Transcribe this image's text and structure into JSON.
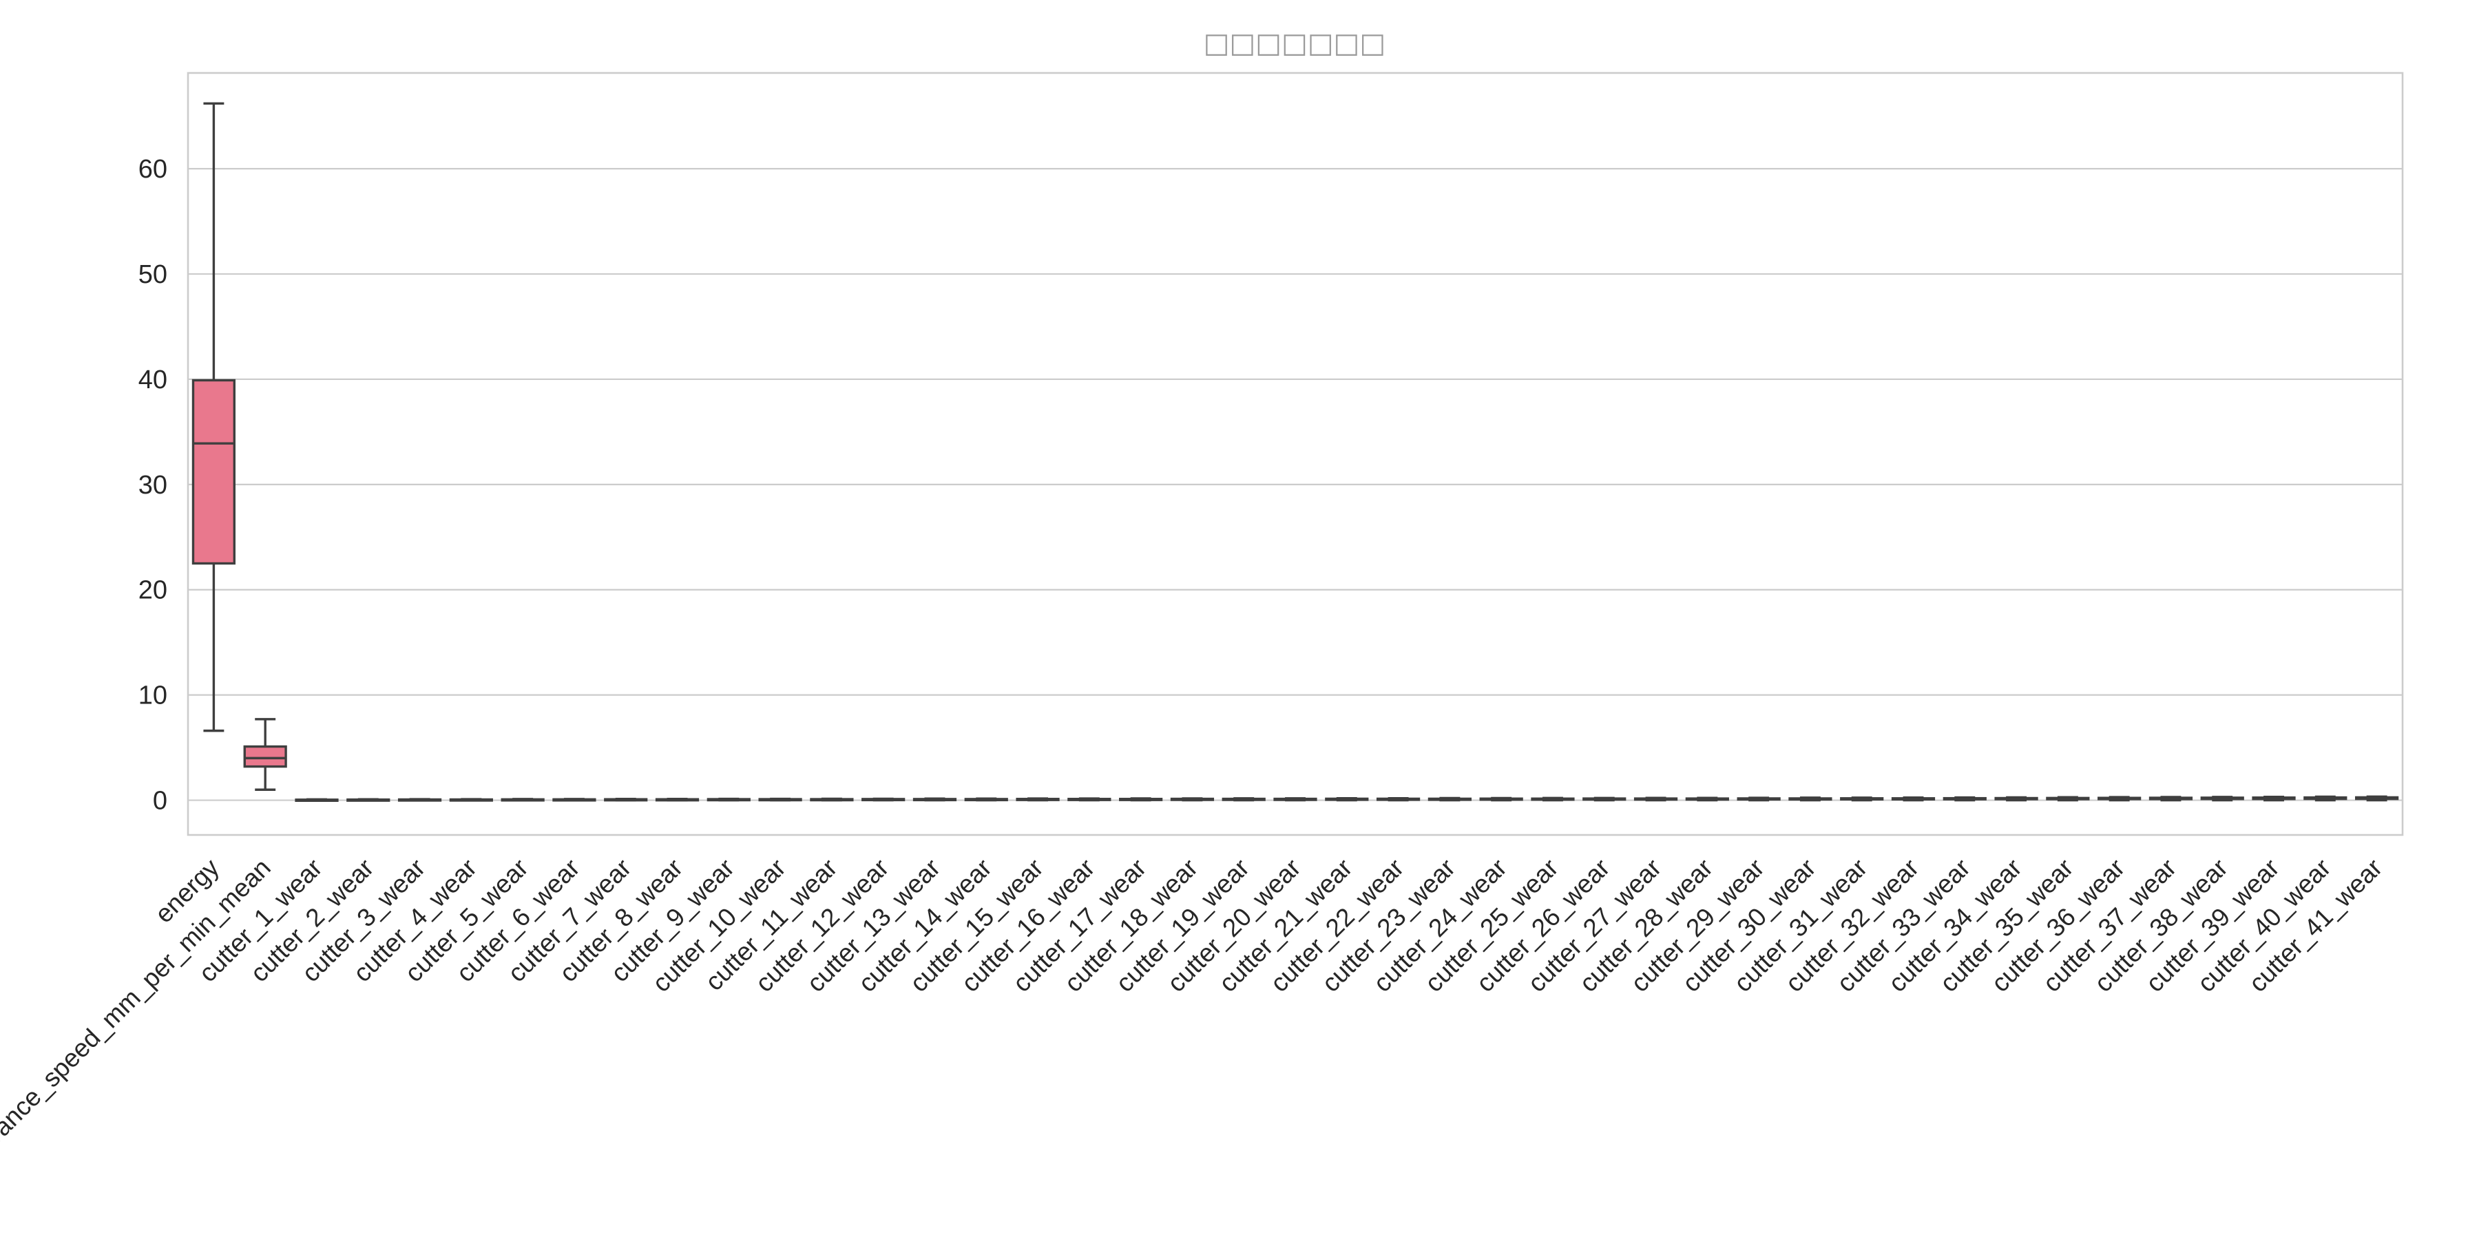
{
  "chart_data": {
    "type": "box",
    "title": "□□□□□□□",
    "xlabel": "",
    "ylabel": "",
    "ylim": [
      -3.3,
      69.1
    ],
    "yticks": [
      0,
      10,
      20,
      30,
      40,
      50,
      60
    ],
    "grid": true,
    "colors": {
      "box_fill": "#e9788d",
      "line": "#3f3f3f",
      "grid": "#cccccc",
      "title": "#9a9a9a"
    },
    "categories": [
      "energy",
      "advance_speed_mm_per_min_mean",
      "cutter_1_wear",
      "cutter_2_wear",
      "cutter_3_wear",
      "cutter_4_wear",
      "cutter_5_wear",
      "cutter_6_wear",
      "cutter_7_wear",
      "cutter_8_wear",
      "cutter_9_wear",
      "cutter_10_wear",
      "cutter_11_wear",
      "cutter_12_wear",
      "cutter_13_wear",
      "cutter_14_wear",
      "cutter_15_wear",
      "cutter_16_wear",
      "cutter_17_wear",
      "cutter_18_wear",
      "cutter_19_wear",
      "cutter_20_wear",
      "cutter_21_wear",
      "cutter_22_wear",
      "cutter_23_wear",
      "cutter_24_wear",
      "cutter_25_wear",
      "cutter_26_wear",
      "cutter_27_wear",
      "cutter_28_wear",
      "cutter_29_wear",
      "cutter_30_wear",
      "cutter_31_wear",
      "cutter_32_wear",
      "cutter_33_wear",
      "cutter_34_wear",
      "cutter_35_wear",
      "cutter_36_wear",
      "cutter_37_wear",
      "cutter_38_wear",
      "cutter_39_wear",
      "cutter_40_wear",
      "cutter_41_wear"
    ],
    "boxes": [
      {
        "min": 6.6,
        "q1": 22.5,
        "median": 33.9,
        "q3": 39.9,
        "max": 66.2
      },
      {
        "min": 1.0,
        "q1": 3.2,
        "median": 4.0,
        "q3": 5.1,
        "max": 7.7
      },
      {
        "min": 0.0,
        "q1": 0.02,
        "median": 0.03,
        "q3": 0.05,
        "max": 0.08
      },
      {
        "min": 0.0,
        "q1": 0.02,
        "median": 0.04,
        "q3": 0.06,
        "max": 0.09
      },
      {
        "min": 0.0,
        "q1": 0.03,
        "median": 0.05,
        "q3": 0.07,
        "max": 0.1
      },
      {
        "min": 0.0,
        "q1": 0.03,
        "median": 0.05,
        "q3": 0.07,
        "max": 0.1
      },
      {
        "min": 0.0,
        "q1": 0.03,
        "median": 0.05,
        "q3": 0.08,
        "max": 0.11
      },
      {
        "min": 0.0,
        "q1": 0.03,
        "median": 0.06,
        "q3": 0.08,
        "max": 0.11
      },
      {
        "min": 0.0,
        "q1": 0.04,
        "median": 0.06,
        "q3": 0.09,
        "max": 0.12
      },
      {
        "min": 0.0,
        "q1": 0.04,
        "median": 0.06,
        "q3": 0.09,
        "max": 0.12
      },
      {
        "min": 0.0,
        "q1": 0.04,
        "median": 0.07,
        "q3": 0.1,
        "max": 0.13
      },
      {
        "min": 0.0,
        "q1": 0.04,
        "median": 0.07,
        "q3": 0.1,
        "max": 0.13
      },
      {
        "min": 0.0,
        "q1": 0.05,
        "median": 0.07,
        "q3": 0.1,
        "max": 0.14
      },
      {
        "min": 0.0,
        "q1": 0.05,
        "median": 0.08,
        "q3": 0.11,
        "max": 0.14
      },
      {
        "min": 0.0,
        "q1": 0.05,
        "median": 0.08,
        "q3": 0.11,
        "max": 0.15
      },
      {
        "min": 0.0,
        "q1": 0.05,
        "median": 0.08,
        "q3": 0.11,
        "max": 0.15
      },
      {
        "min": 0.0,
        "q1": 0.05,
        "median": 0.08,
        "q3": 0.12,
        "max": 0.16
      },
      {
        "min": 0.0,
        "q1": 0.06,
        "median": 0.09,
        "q3": 0.12,
        "max": 0.16
      },
      {
        "min": 0.0,
        "q1": 0.06,
        "median": 0.09,
        "q3": 0.12,
        "max": 0.17
      },
      {
        "min": 0.0,
        "q1": 0.06,
        "median": 0.09,
        "q3": 0.13,
        "max": 0.17
      },
      {
        "min": 0.0,
        "q1": 0.06,
        "median": 0.1,
        "q3": 0.13,
        "max": 0.18
      },
      {
        "min": 0.0,
        "q1": 0.06,
        "median": 0.1,
        "q3": 0.13,
        "max": 0.18
      },
      {
        "min": 0.0,
        "q1": 0.07,
        "median": 0.1,
        "q3": 0.14,
        "max": 0.19
      },
      {
        "min": 0.0,
        "q1": 0.07,
        "median": 0.1,
        "q3": 0.14,
        "max": 0.19
      },
      {
        "min": 0.0,
        "q1": 0.07,
        "median": 0.11,
        "q3": 0.14,
        "max": 0.2
      },
      {
        "min": 0.0,
        "q1": 0.07,
        "median": 0.11,
        "q3": 0.15,
        "max": 0.2
      },
      {
        "min": 0.0,
        "q1": 0.07,
        "median": 0.11,
        "q3": 0.15,
        "max": 0.21
      },
      {
        "min": 0.0,
        "q1": 0.08,
        "median": 0.12,
        "q3": 0.16,
        "max": 0.21
      },
      {
        "min": 0.0,
        "q1": 0.08,
        "median": 0.12,
        "q3": 0.16,
        "max": 0.22
      },
      {
        "min": 0.0,
        "q1": 0.08,
        "median": 0.12,
        "q3": 0.16,
        "max": 0.22
      },
      {
        "min": 0.0,
        "q1": 0.08,
        "median": 0.13,
        "q3": 0.17,
        "max": 0.23
      },
      {
        "min": 0.0,
        "q1": 0.09,
        "median": 0.13,
        "q3": 0.17,
        "max": 0.24
      },
      {
        "min": 0.0,
        "q1": 0.09,
        "median": 0.13,
        "q3": 0.18,
        "max": 0.24
      },
      {
        "min": 0.0,
        "q1": 0.09,
        "median": 0.14,
        "q3": 0.18,
        "max": 0.25
      },
      {
        "min": 0.0,
        "q1": 0.09,
        "median": 0.14,
        "q3": 0.19,
        "max": 0.26
      },
      {
        "min": 0.0,
        "q1": 0.1,
        "median": 0.15,
        "q3": 0.2,
        "max": 0.27
      },
      {
        "min": 0.0,
        "q1": 0.1,
        "median": 0.15,
        "q3": 0.21,
        "max": 0.28
      },
      {
        "min": 0.0,
        "q1": 0.11,
        "median": 0.16,
        "q3": 0.22,
        "max": 0.29
      },
      {
        "min": 0.0,
        "q1": 0.11,
        "median": 0.17,
        "q3": 0.23,
        "max": 0.3
      },
      {
        "min": 0.0,
        "q1": 0.12,
        "median": 0.18,
        "q3": 0.24,
        "max": 0.31
      },
      {
        "min": 0.0,
        "q1": 0.12,
        "median": 0.18,
        "q3": 0.25,
        "max": 0.32
      },
      {
        "min": 0.0,
        "q1": 0.13,
        "median": 0.19,
        "q3": 0.26,
        "max": 0.33
      },
      {
        "min": 0.0,
        "q1": 0.13,
        "median": 0.2,
        "q3": 0.27,
        "max": 0.34
      }
    ]
  }
}
